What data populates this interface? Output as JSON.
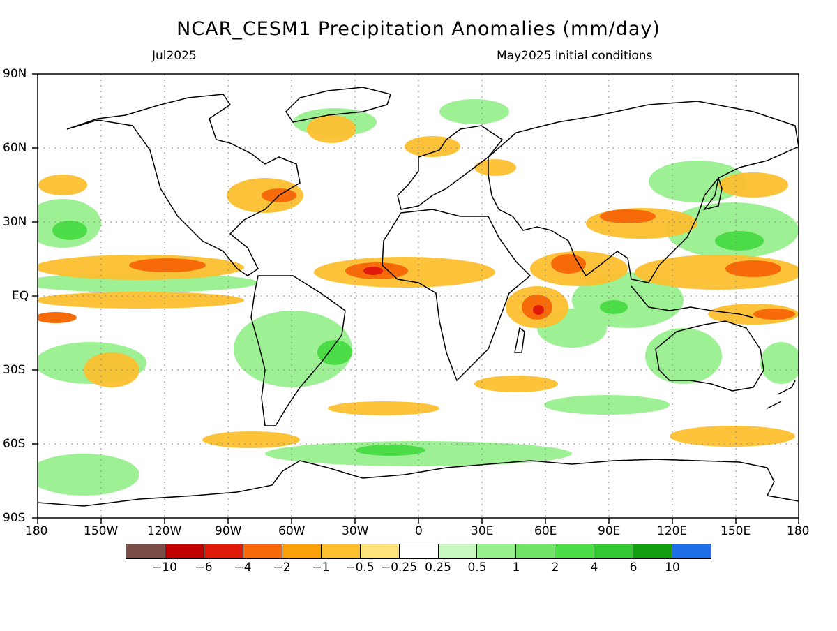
{
  "header": {
    "title": "NCAR_CESM1 Precipitation Anomalies (mm/day)",
    "valid_month": "Jul2025",
    "init_note": "May2025 initial conditions"
  },
  "map": {
    "projection": "equirectangular",
    "lon_range": [
      -180,
      180
    ],
    "lat_range": [
      -90,
      90
    ],
    "lat_labels": [
      "90N",
      "60N",
      "30N",
      "EQ",
      "30S",
      "60S",
      "90S"
    ],
    "lon_labels": [
      "180",
      "150W",
      "120W",
      "90W",
      "60W",
      "30W",
      "0",
      "30E",
      "60E",
      "90E",
      "120E",
      "150E",
      "180"
    ],
    "gridlines": "dotted, every 30 degrees",
    "coastlines": true,
    "zero_band_color": "#ffffff"
  },
  "colorbar": {
    "colors": [
      "#7b4e45",
      "#c00000",
      "#e01a0a",
      "#f66a0a",
      "#f9a00a",
      "#fcc030",
      "#fde37a",
      "#ffffff",
      "#c8fac0",
      "#98f08e",
      "#72e46a",
      "#4cdc48",
      "#34c834",
      "#12a012",
      "#1f6fe8"
    ],
    "labels": [
      "−10",
      "−6",
      "−4",
      "−2",
      "−1",
      "−0.5",
      "−0.25",
      "0.25",
      "0.5",
      "1",
      "2",
      "4",
      "6",
      "10"
    ]
  }
}
